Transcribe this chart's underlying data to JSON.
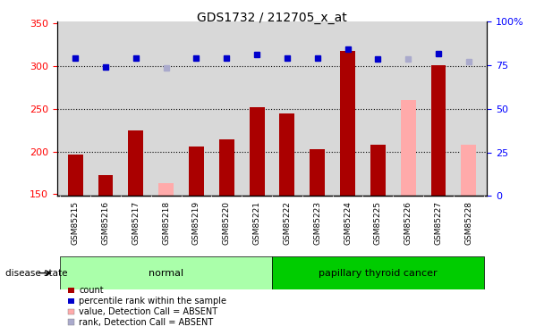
{
  "title": "GDS1732 / 212705_x_at",
  "samples": [
    "GSM85215",
    "GSM85216",
    "GSM85217",
    "GSM85218",
    "GSM85219",
    "GSM85220",
    "GSM85221",
    "GSM85222",
    "GSM85223",
    "GSM85224",
    "GSM85225",
    "GSM85226",
    "GSM85227",
    "GSM85228"
  ],
  "bar_values": [
    197,
    172,
    225,
    null,
    206,
    214,
    252,
    245,
    203,
    318,
    208,
    null,
    301,
    null
  ],
  "bar_absent_values": [
    null,
    null,
    null,
    163,
    null,
    null,
    null,
    null,
    null,
    null,
    null,
    260,
    null,
    208
  ],
  "rank_values": [
    309,
    299,
    310,
    null,
    309,
    309,
    314,
    309,
    309,
    320,
    308,
    null,
    315,
    null
  ],
  "rank_absent_values": [
    null,
    null,
    null,
    298,
    null,
    null,
    null,
    null,
    null,
    null,
    null,
    308,
    null,
    305
  ],
  "ylim": [
    148,
    352
  ],
  "left_yticks": [
    150,
    200,
    250,
    300,
    350
  ],
  "right_yticks": [
    0,
    25,
    50,
    75,
    100
  ],
  "right_yticklabels": [
    "0",
    "25",
    "50",
    "75",
    "100%"
  ],
  "bar_color": "#aa0000",
  "bar_absent_color": "#ffaaaa",
  "rank_color": "#0000cc",
  "rank_absent_color": "#aaaacc",
  "normal_group": [
    0,
    1,
    2,
    3,
    4,
    5,
    6
  ],
  "cancer_group": [
    7,
    8,
    9,
    10,
    11,
    12,
    13
  ],
  "normal_label": "normal",
  "cancer_label": "papillary thyroid cancer",
  "disease_state_label": "disease state",
  "normal_color": "#aaffaa",
  "cancer_color": "#00cc00",
  "legend_items": [
    {
      "label": "count",
      "color": "#aa0000"
    },
    {
      "label": "percentile rank within the sample",
      "color": "#0000cc"
    },
    {
      "label": "value, Detection Call = ABSENT",
      "color": "#ffaaaa"
    },
    {
      "label": "rank, Detection Call = ABSENT",
      "color": "#aaaacc"
    }
  ],
  "bar_width": 0.5,
  "rank_marker_size": 5,
  "dotted_grid_values": [
    200,
    250,
    300
  ],
  "plot_bg_color": "#d8d8d8",
  "fig_bg_color": "#ffffff"
}
